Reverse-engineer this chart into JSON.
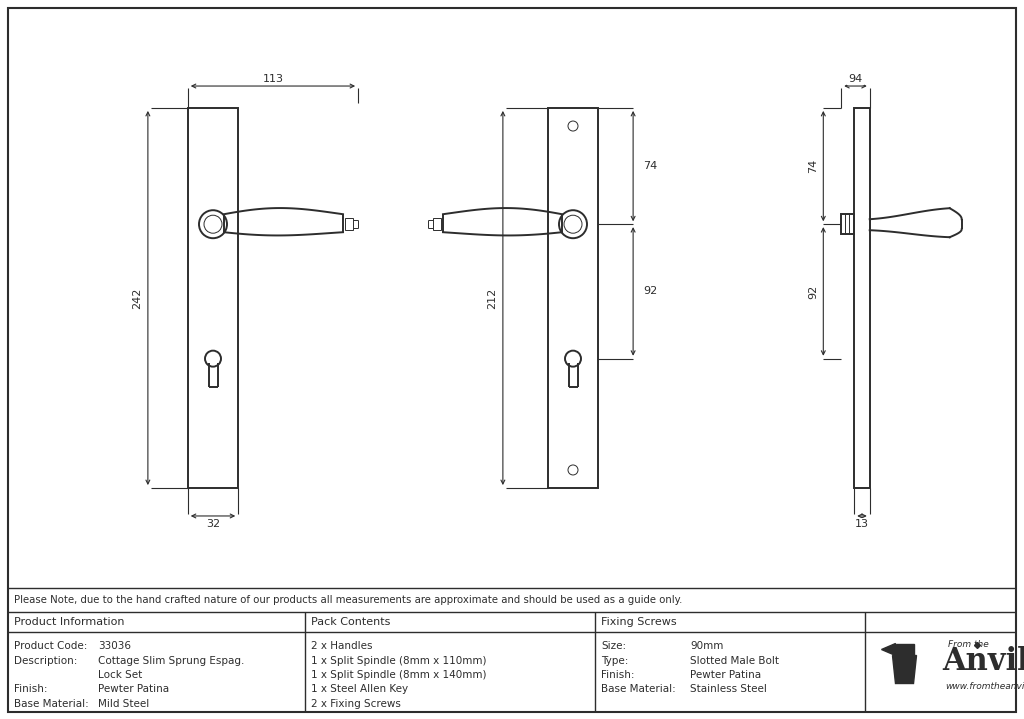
{
  "bg_color": "#ffffff",
  "line_color": "#2d2d2d",
  "note_text": "Please Note, due to the hand crafted nature of our products all measurements are approximate and should be used as a guide only.",
  "product_info_header": "Product Information",
  "pack_contents_header": "Pack Contents",
  "fixing_screws_header": "Fixing Screws",
  "col1": [
    [
      "Product Code:",
      "33036"
    ],
    [
      "Description:",
      "Cottage Slim Sprung Espag."
    ],
    [
      "",
      "Lock Set"
    ],
    [
      "Finish:",
      "Pewter Patina"
    ],
    [
      "Base Material:",
      "Mild Steel"
    ]
  ],
  "col2": [
    "2 x Handles",
    "1 x Split Spindle (8mm x 110mm)",
    "1 x Split Spindle (8mm x 140mm)",
    "1 x Steel Allen Key",
    "2 x Fixing Screws"
  ],
  "col3": [
    [
      "Size:",
      "90mm"
    ],
    [
      "Type:",
      "Slotted Male Bolt"
    ],
    [
      "Finish:",
      "Pewter Patina"
    ],
    [
      "Base Material:",
      "Stainless Steel"
    ]
  ],
  "anvil_url": "www.fromtheanvil.co.uk",
  "anvil_brand": "Anvil",
  "anvil_from_the": "From the",
  "dim_113": "113",
  "dim_242": "242",
  "dim_32": "32",
  "dim_212": "212",
  "dim_74": "74",
  "dim_92": "92",
  "dim_94": "94",
  "dim_13": "13"
}
